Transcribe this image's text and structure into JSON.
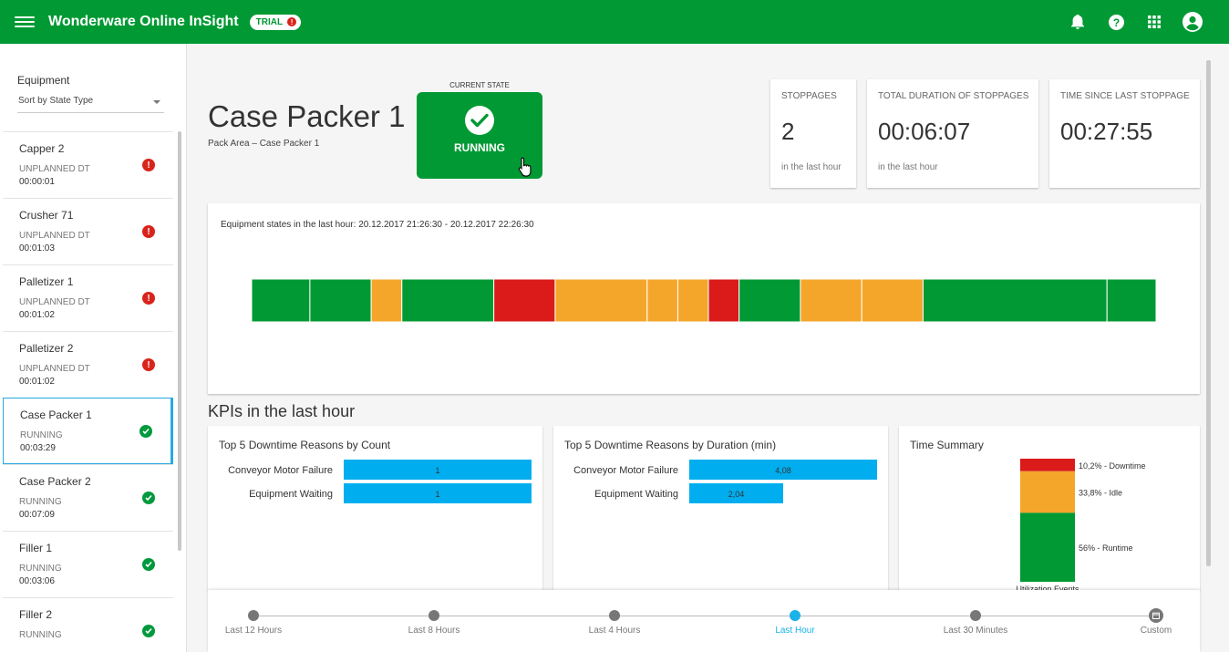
{
  "app": {
    "title": "Wonderware Online InSight",
    "trial_label": "TRIAL",
    "trial_alert": "!"
  },
  "topbar_icons": [
    "bell-icon",
    "help-icon",
    "apps-grid-icon",
    "account-icon"
  ],
  "sidebar": {
    "header": "Equipment",
    "sort_label": "Sort by State Type",
    "items": [
      {
        "name": "Capper 2",
        "state": "UNPLANNED DT",
        "time": "00:00:01",
        "status": "error"
      },
      {
        "name": "Crusher 71",
        "state": "UNPLANNED DT",
        "time": "00:01:03",
        "status": "error"
      },
      {
        "name": "Palletizer 1",
        "state": "UNPLANNED DT",
        "time": "00:01:02",
        "status": "error"
      },
      {
        "name": "Palletizer 2",
        "state": "UNPLANNED DT",
        "time": "00:01:02",
        "status": "error"
      },
      {
        "name": "Case Packer 1",
        "state": "RUNNING",
        "time": "00:03:29",
        "status": "ok"
      },
      {
        "name": "Case Packer 2",
        "state": "RUNNING",
        "time": "00:07:09",
        "status": "ok"
      },
      {
        "name": "Filler 1",
        "state": "RUNNING",
        "time": "00:03:06",
        "status": "ok"
      },
      {
        "name": "Filler 2",
        "state": "RUNNING",
        "time": "",
        "status": "ok"
      }
    ]
  },
  "equipment": {
    "title": "Case Packer 1",
    "path": "Pack Area – Case Packer 1"
  },
  "current_state": {
    "label": "CURRENT STATE",
    "value": "RUNNING"
  },
  "kpis": [
    {
      "label": "STOPPAGES",
      "value": "2",
      "sub": "in the last hour"
    },
    {
      "label": "TOTAL DURATION OF STOPPAGES",
      "value": "00:06:07",
      "sub": "in the last hour"
    },
    {
      "label": "TIME SINCE LAST STOPPAGE",
      "value": "00:27:55",
      "sub": ""
    }
  ],
  "states_chart": {
    "title": "Equipment states in the last hour: 20.12.2017 21:26:30 - 20.12.2017 22:26:30",
    "colors": {
      "running": "#009933",
      "idle": "#f4a62a",
      "downtime": "#db1a1a"
    },
    "segments": [
      {
        "state": "running",
        "weight": 1.9
      },
      {
        "state": "running",
        "weight": 2.0
      },
      {
        "state": "idle",
        "weight": 1.0
      },
      {
        "state": "running",
        "weight": 3.0
      },
      {
        "state": "downtime",
        "weight": 2.0
      },
      {
        "state": "idle",
        "weight": 3.0
      },
      {
        "state": "idle",
        "weight": 1.0
      },
      {
        "state": "idle",
        "weight": 1.0
      },
      {
        "state": "downtime",
        "weight": 1.0
      },
      {
        "state": "running",
        "weight": 2.0
      },
      {
        "state": "idle",
        "weight": 2.0
      },
      {
        "state": "idle",
        "weight": 2.0
      },
      {
        "state": "running",
        "weight": 6.0
      },
      {
        "state": "running",
        "weight": 1.6
      }
    ]
  },
  "kpi_section_title": "KPIs in the last hour",
  "chart_data": [
    {
      "type": "bar",
      "title": "Top 5 Downtime Reasons by Count",
      "categories": [
        "Conveyor Motor Failure",
        "Equipment Waiting"
      ],
      "values": [
        1,
        1
      ],
      "value_labels": [
        "1",
        "1"
      ],
      "xlim": [
        0,
        1
      ],
      "color": "#00aeef"
    },
    {
      "type": "bar",
      "title": "Top 5 Downtime Reasons by Duration (min)",
      "categories": [
        "Conveyor Motor Failure",
        "Equipment Waiting"
      ],
      "values": [
        4.08,
        2.04
      ],
      "value_labels": [
        "4,08",
        "2,04"
      ],
      "xlim": [
        0,
        4.08
      ],
      "color": "#00aeef"
    },
    {
      "type": "bar",
      "title": "Time Summary",
      "stacked": true,
      "categories": [
        "Utilization Events"
      ],
      "series": [
        {
          "name": "Runtime",
          "values": [
            56
          ],
          "label": "56% - Runtime",
          "color": "#009933"
        },
        {
          "name": "Idle",
          "values": [
            33.8
          ],
          "label": "33,8% - Idle",
          "color": "#f4a62a"
        },
        {
          "name": "Downtime",
          "values": [
            10.2
          ],
          "label": "10,2% - Downtime",
          "color": "#db1a1a"
        }
      ],
      "ylim": [
        0,
        100
      ]
    }
  ],
  "time_range": {
    "options": [
      "Last 12 Hours",
      "Last 8 Hours",
      "Last 4 Hours",
      "Last Hour",
      "Last 30 Minutes",
      "Custom"
    ],
    "active": "Last Hour"
  }
}
